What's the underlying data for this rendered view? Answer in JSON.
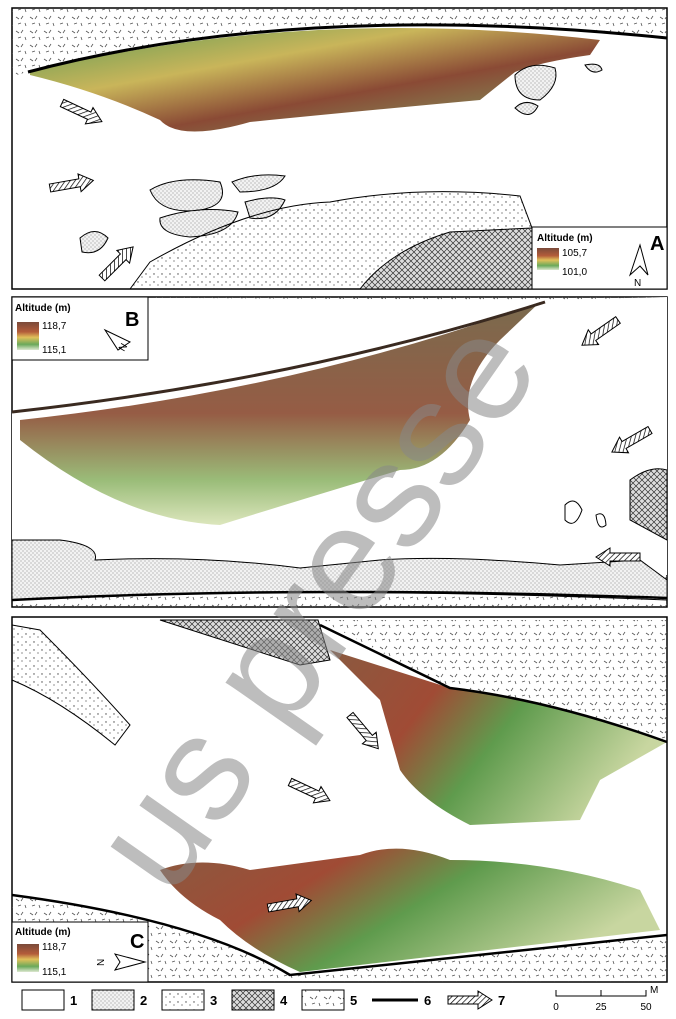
{
  "panels": [
    {
      "label": "A",
      "legend": {
        "title": "Altitude (m)",
        "max": "105,7",
        "min": "101,0"
      },
      "north": "N"
    },
    {
      "label": "B",
      "legend": {
        "title": "Altitude (m)",
        "max": "118,7",
        "min": "115,1"
      },
      "north": "N"
    },
    {
      "label": "C",
      "legend": {
        "title": "Altitude (m)",
        "max": "118,7",
        "min": "115,1"
      },
      "north": "N"
    }
  ],
  "legend": {
    "items": [
      "1",
      "2",
      "3",
      "4",
      "5",
      "6",
      "7"
    ]
  },
  "scale": {
    "ticks": [
      "0",
      "25",
      "50"
    ],
    "unit": "M"
  },
  "watermark": "us presse"
}
